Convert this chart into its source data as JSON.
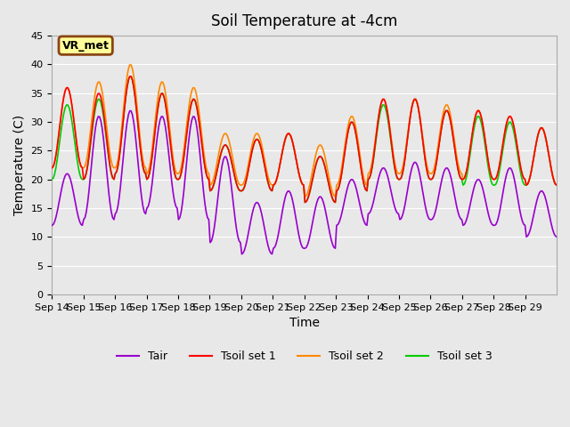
{
  "title": "Soil Temperature at -4cm",
  "xlabel": "Time",
  "ylabel": "Temperature (C)",
  "ylim": [
    0,
    45
  ],
  "yticks": [
    0,
    5,
    10,
    15,
    20,
    25,
    30,
    35,
    40,
    45
  ],
  "background_color": "#e8e8e8",
  "plot_bg_color": "#e8e8e8",
  "annotation_text": "VR_met",
  "annotation_box_color": "#ffff99",
  "annotation_border_color": "#8B4513",
  "line_colors": {
    "Tair": "#9900cc",
    "Tsoil1": "#ff0000",
    "Tsoil2": "#ff8800",
    "Tsoil3": "#00cc00"
  },
  "legend_labels": [
    "Tair",
    "Tsoil set 1",
    "Tsoil set 2",
    "Tsoil set 3"
  ],
  "xtick_labels": [
    "Sep 14",
    "Sep 15",
    "Sep 16",
    "Sep 17",
    "Sep 18",
    "Sep 19",
    "Sep 20",
    "Sep 21",
    "Sep 22",
    "Sep 23",
    "Sep 24",
    "Sep 25",
    "Sep 26",
    "Sep 27",
    "Sep 28",
    "Sep 29"
  ],
  "n_days": 16,
  "points_per_day": 24,
  "tair_amp": [
    9,
    18,
    18,
    16,
    18,
    15,
    9,
    10,
    9,
    8,
    8,
    10,
    9,
    8,
    10,
    8
  ],
  "tair_min": [
    12,
    13,
    14,
    15,
    13,
    9,
    7,
    8,
    8,
    12,
    14,
    13,
    13,
    12,
    12,
    10
  ],
  "tsoil1_amp": [
    14,
    15,
    17,
    15,
    14,
    8,
    9,
    9,
    8,
    12,
    14,
    14,
    12,
    12,
    11,
    10
  ],
  "tsoil1_min": [
    22,
    20,
    21,
    20,
    20,
    18,
    18,
    19,
    16,
    18,
    20,
    20,
    20,
    20,
    20,
    19
  ],
  "tsoil2_amp": [
    14,
    15,
    18,
    16,
    15,
    9,
    9,
    9,
    9,
    12,
    13,
    13,
    12,
    12,
    11,
    10
  ],
  "tsoil2_min": [
    22,
    22,
    22,
    21,
    21,
    19,
    19,
    19,
    17,
    19,
    21,
    21,
    21,
    20,
    20,
    19
  ],
  "tsoil3_amp": [
    13,
    14,
    17,
    15,
    14,
    8,
    9,
    9,
    8,
    12,
    13,
    14,
    12,
    12,
    11,
    10
  ],
  "tsoil3_min": [
    20,
    20,
    21,
    20,
    20,
    18,
    18,
    19,
    16,
    18,
    20,
    20,
    20,
    19,
    19,
    19
  ]
}
